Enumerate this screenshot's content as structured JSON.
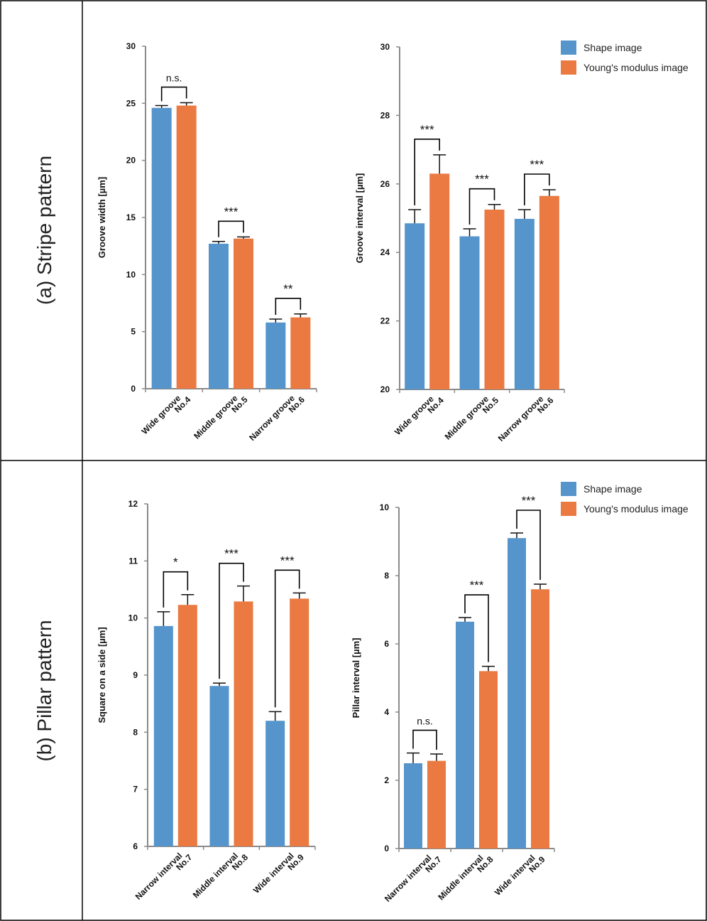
{
  "colors": {
    "shape": "#5595cc",
    "young": "#ea7a42",
    "axis": "#8a8a8a",
    "border": "#000000",
    "bracket": "#000000"
  },
  "legend": {
    "items": [
      "Shape image",
      "Young's modulus image"
    ]
  },
  "rows": [
    {
      "label": "(a) Stripe pattern"
    },
    {
      "label": "(b) Pillar pattern"
    }
  ],
  "chart_data": [
    {
      "type": "bar",
      "categories": [
        "Wide groove No.4",
        "Middle groove No.5",
        "Narrow groove No.6"
      ],
      "category_lines": [
        [
          "Wide groove",
          "No.4"
        ],
        [
          "Middle groove",
          "No.5"
        ],
        [
          "Narrow groove",
          "No.6"
        ]
      ],
      "series": [
        {
          "name": "Shape image",
          "values": [
            24.6,
            12.7,
            5.8
          ],
          "errors": [
            0.2,
            0.2,
            0.3
          ]
        },
        {
          "name": "Young's modulus image",
          "values": [
            24.8,
            13.15,
            6.25
          ],
          "errors": [
            0.25,
            0.15,
            0.3
          ]
        }
      ],
      "ylabel": "Groove width [µm]",
      "ylim": [
        0,
        30
      ],
      "yticks": [
        "0",
        "5",
        "10",
        "15",
        "20",
        "25",
        "30"
      ],
      "annotations": [
        "n.s.",
        "***",
        "**"
      ],
      "legend": false
    },
    {
      "type": "bar",
      "categories": [
        "Wide groove No.4",
        "Middle groove No.5",
        "Narrow groove No.6"
      ],
      "category_lines": [
        [
          "Wide groove",
          "No.4"
        ],
        [
          "Middle groove",
          "No.5"
        ],
        [
          "Narrow groove",
          "No.6"
        ]
      ],
      "series": [
        {
          "name": "Shape image",
          "values": [
            24.85,
            24.47,
            24.98
          ],
          "errors": [
            0.4,
            0.22,
            0.27
          ]
        },
        {
          "name": "Young's modulus image",
          "values": [
            26.3,
            25.25,
            25.65
          ],
          "errors": [
            0.55,
            0.15,
            0.18
          ]
        }
      ],
      "ylabel": "Groove interval [µm]",
      "ylim": [
        20,
        30
      ],
      "yticks": [
        "20",
        "22",
        "24",
        "26",
        "28",
        "30"
      ],
      "annotations": [
        "***",
        "***",
        "***"
      ],
      "legend": true
    },
    {
      "type": "bar",
      "categories": [
        "Narrow interval No.7",
        "Middle interval No.8",
        "Wide interval No.9"
      ],
      "category_lines": [
        [
          "Narrow interval",
          "No.7"
        ],
        [
          "Middle interval",
          "No.8"
        ],
        [
          "Wide interval",
          "No.9"
        ]
      ],
      "series": [
        {
          "name": "Shape image",
          "values": [
            9.86,
            8.81,
            8.2
          ],
          "errors": [
            0.25,
            0.05,
            0.16
          ]
        },
        {
          "name": "Young's modulus image",
          "values": [
            10.23,
            10.29,
            10.34
          ],
          "errors": [
            0.18,
            0.27,
            0.1
          ]
        }
      ],
      "ylabel": "Square on a side [µm]",
      "ylim": [
        6,
        12
      ],
      "yticks": [
        "6",
        "7",
        "8",
        "9",
        "10",
        "11",
        "12"
      ],
      "annotations": [
        "*",
        "***",
        "***"
      ],
      "legend": false
    },
    {
      "type": "bar",
      "categories": [
        "Narrow interval No.7",
        "Middle interval No.8",
        "Wide interval No.9"
      ],
      "category_lines": [
        [
          "Narrow interval",
          "No.7"
        ],
        [
          "Middle interval",
          "No.8"
        ],
        [
          "Wide interval",
          "No.9"
        ]
      ],
      "series": [
        {
          "name": "Shape image",
          "values": [
            2.5,
            6.65,
            9.1
          ],
          "errors": [
            0.3,
            0.12,
            0.15
          ]
        },
        {
          "name": "Young's modulus image",
          "values": [
            2.57,
            5.2,
            7.6
          ],
          "errors": [
            0.2,
            0.14,
            0.15
          ]
        }
      ],
      "ylabel": "Pillar interval [µm]",
      "ylim": [
        0,
        10
      ],
      "yticks": [
        "0",
        "2",
        "4",
        "6",
        "8",
        "10"
      ],
      "annotations": [
        "n.s.",
        "***",
        "***"
      ],
      "legend": true
    }
  ]
}
